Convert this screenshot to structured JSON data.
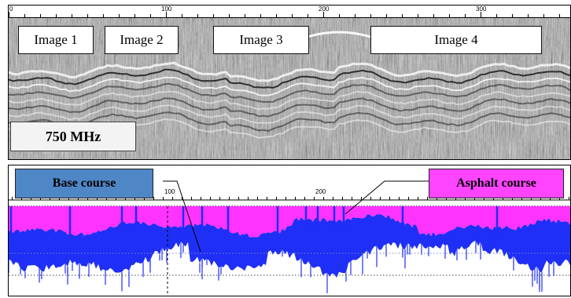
{
  "radar": {
    "image_labels": [
      "Image 1",
      "Image 2",
      "Image 3",
      "Image 4"
    ],
    "frequency_label": "750 MHz",
    "axis_ticks": [
      "0",
      "100",
      "200",
      "300"
    ]
  },
  "layers": {
    "base_label": "Base course",
    "asphalt_label": "Asphalt course",
    "axis_ticks": [
      "100",
      "200"
    ],
    "colors": {
      "asphalt": "#ff33ff",
      "base": "#1f2ff5",
      "base_legend": "#4f86c6",
      "asphalt_legend": "#ff44ff"
    }
  }
}
